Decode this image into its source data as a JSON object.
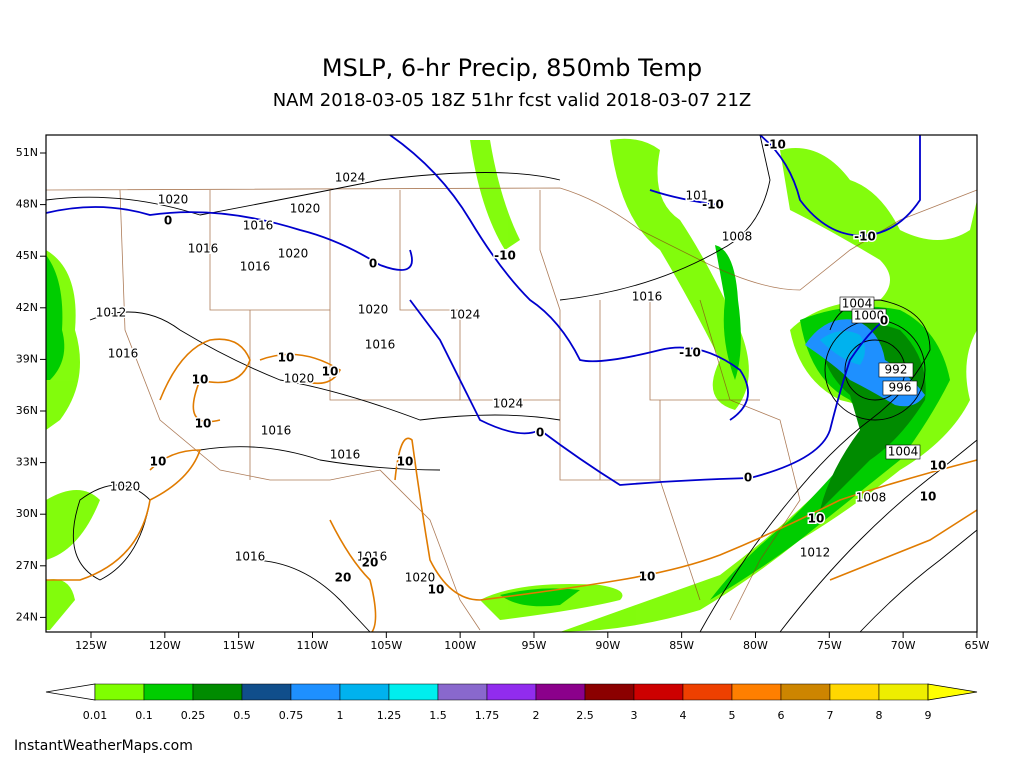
{
  "title": "MSLP, 6-hr Precip, 850mb Temp",
  "subtitle": "NAM 2018-03-05 18Z 51hr fcst valid 2018-03-07 21Z",
  "lat_labels": [
    "51N",
    "48N",
    "45N",
    "42N",
    "39N",
    "36N",
    "33N",
    "30N",
    "27N",
    "24N"
  ],
  "lon_labels": [
    "125W",
    "120W",
    "115W",
    "110W",
    "105W",
    "100W",
    "95W",
    "90W",
    "85W",
    "80W",
    "75W",
    "70W",
    "65W"
  ],
  "isobar_labels": [
    "1024",
    "1020",
    "1016",
    "1020",
    "1016",
    "1020",
    "1016",
    "1012",
    "1016",
    "1020",
    "1024",
    "1016",
    "1020",
    "1024",
    "1016",
    "1016",
    "1020",
    "1016",
    "1016",
    "1020",
    "1016",
    "1008",
    "1008",
    "1012",
    "101"
  ],
  "boxed_labels": [
    "1004",
    "1000",
    "992",
    "996",
    "1004"
  ],
  "freezing_labels": [
    "0",
    "0",
    "-10",
    "0",
    "-10",
    "0",
    "-10",
    "-10",
    "-10",
    "0"
  ],
  "warm_labels": [
    "10",
    "10",
    "10",
    "10",
    "10",
    "10",
    "20",
    "20",
    "10",
    "10",
    "10",
    "10",
    "10"
  ],
  "colorbar": {
    "labels": [
      "0.01",
      "0.1",
      "0.25",
      "0.5",
      "0.75",
      "1",
      "1.25",
      "1.5",
      "1.75",
      "2",
      "2.5",
      "3",
      "4",
      "5",
      "6",
      "7",
      "8",
      "9"
    ],
    "colors": [
      "#7fff00",
      "#00cd00",
      "#008b00",
      "#104e8b",
      "#1e90ff",
      "#00b2ee",
      "#00eeee",
      "#8968cd",
      "#912cee",
      "#8b008b",
      "#8b0000",
      "#cd0000",
      "#ee4000",
      "#ff7f00",
      "#cd8500",
      "#ffd700",
      "#eeee00",
      "#ffff00"
    ]
  },
  "credit": "InstantWeatherMaps.com"
}
